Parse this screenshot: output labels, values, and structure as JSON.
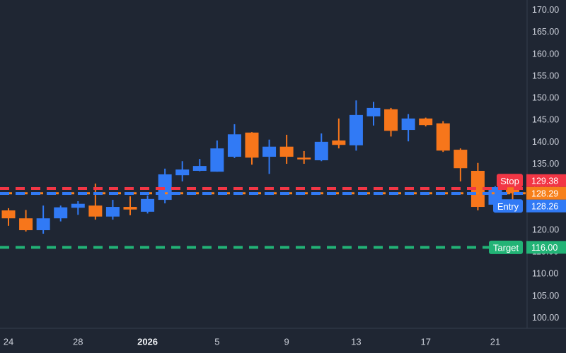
{
  "window": {
    "type": "trading-chart"
  },
  "colors": {
    "background": "#1F2633",
    "axis_border": "#363D4E",
    "axis_text": "#CDD1DB",
    "axis_text_bold": "#F2F4F8",
    "badge_text": "#FFFFFF"
  },
  "chart_data": {
    "type": "candlestick",
    "title": "",
    "legend": false,
    "grid": false,
    "colors": {
      "up": "#317AF5",
      "down": "#F7761B"
    },
    "y_axis": {
      "min": 100,
      "max": 170,
      "step": 5,
      "tick_labels": [
        "170.00",
        "165.00",
        "160.00",
        "155.00",
        "150.00",
        "145.00",
        "140.00",
        "135.00",
        "130.00",
        "125.00",
        "120.00",
        "115.00",
        "110.00",
        "105.00",
        "100.00"
      ]
    },
    "x_axis": {
      "labels": [
        {
          "candle_index": 0,
          "text": "24",
          "bold": false
        },
        {
          "candle_index": 4,
          "text": "28",
          "bold": false
        },
        {
          "candle_index": 8,
          "text": "2026",
          "bold": true
        },
        {
          "candle_index": 12,
          "text": "5",
          "bold": false
        },
        {
          "candle_index": 16,
          "text": "9",
          "bold": false
        },
        {
          "candle_index": 20,
          "text": "13",
          "bold": false
        },
        {
          "candle_index": 24,
          "text": "17",
          "bold": false
        },
        {
          "candle_index": 28,
          "text": "21",
          "bold": false
        }
      ]
    },
    "series": {
      "name": "price",
      "candles": [
        {
          "o": 124.4,
          "h": 124.9,
          "l": 120.9,
          "c": 122.6
        },
        {
          "o": 122.6,
          "h": 124.5,
          "l": 119.6,
          "c": 119.9
        },
        {
          "o": 119.9,
          "h": 125.5,
          "l": 119.1,
          "c": 122.6
        },
        {
          "o": 122.6,
          "h": 125.5,
          "l": 121.9,
          "c": 125.1
        },
        {
          "o": 125.0,
          "h": 126.5,
          "l": 123.4,
          "c": 125.9
        },
        {
          "o": 125.5,
          "h": 130.5,
          "l": 122.3,
          "c": 123.0
        },
        {
          "o": 123.0,
          "h": 126.8,
          "l": 122.3,
          "c": 125.2
        },
        {
          "o": 125.2,
          "h": 127.6,
          "l": 123.3,
          "c": 124.6
        },
        {
          "o": 124.1,
          "h": 127.8,
          "l": 123.7,
          "c": 127.0
        },
        {
          "o": 126.8,
          "h": 133.9,
          "l": 126.0,
          "c": 132.6
        },
        {
          "o": 132.4,
          "h": 135.6,
          "l": 131.0,
          "c": 133.7
        },
        {
          "o": 133.4,
          "h": 136.1,
          "l": 133.3,
          "c": 134.5
        },
        {
          "o": 133.2,
          "h": 140.3,
          "l": 133.2,
          "c": 138.5
        },
        {
          "o": 136.6,
          "h": 144.0,
          "l": 136.3,
          "c": 141.7
        },
        {
          "o": 142.1,
          "h": 142.2,
          "l": 134.8,
          "c": 136.4
        },
        {
          "o": 136.6,
          "h": 140.5,
          "l": 132.7,
          "c": 138.9
        },
        {
          "o": 138.9,
          "h": 141.6,
          "l": 135.0,
          "c": 136.6
        },
        {
          "o": 136.4,
          "h": 137.9,
          "l": 135.0,
          "c": 136.0
        },
        {
          "o": 135.8,
          "h": 141.9,
          "l": 135.6,
          "c": 140.0
        },
        {
          "o": 140.3,
          "h": 145.3,
          "l": 138.5,
          "c": 139.3
        },
        {
          "o": 139.2,
          "h": 149.4,
          "l": 138.0,
          "c": 146.1
        },
        {
          "o": 145.8,
          "h": 149.1,
          "l": 143.7,
          "c": 147.7
        },
        {
          "o": 147.4,
          "h": 147.7,
          "l": 141.2,
          "c": 142.5
        },
        {
          "o": 142.7,
          "h": 146.3,
          "l": 140.1,
          "c": 145.3
        },
        {
          "o": 145.3,
          "h": 145.5,
          "l": 143.5,
          "c": 143.8
        },
        {
          "o": 144.2,
          "h": 144.7,
          "l": 137.7,
          "c": 138.0
        },
        {
          "o": 138.2,
          "h": 138.5,
          "l": 131.0,
          "c": 134.0
        },
        {
          "o": 133.4,
          "h": 135.2,
          "l": 124.4,
          "c": 125.2
        },
        {
          "o": 125.7,
          "h": 129.9,
          "l": 124.9,
          "c": 129.7
        },
        {
          "o": 129.8,
          "h": 130.3,
          "l": 126.0,
          "c": 128.29
        }
      ]
    },
    "overlays": [
      {
        "id": "stop",
        "label": "Stop",
        "price": 129.38,
        "badge": "129.38",
        "color": "#F23645",
        "style": "dashed"
      },
      {
        "id": "current_price",
        "label": "",
        "price": 128.29,
        "badge": "128.29",
        "color": "#F7801A",
        "style": "dotted"
      },
      {
        "id": "entry",
        "label": "Entry",
        "price": 128.26,
        "badge": "128.26",
        "color": "#317AF5",
        "style": "dashed"
      },
      {
        "id": "target",
        "label": "Target",
        "price": 116.0,
        "badge": "116.00",
        "color": "#22B376",
        "style": "dashed"
      }
    ]
  }
}
